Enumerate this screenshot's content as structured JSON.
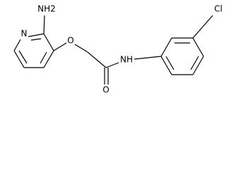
{
  "atoms": [
    {
      "label": "NH2"
    },
    {
      "label": "N"
    },
    {
      "label": "O"
    },
    {
      "label": "NH"
    },
    {
      "label": "O"
    },
    {
      "label": "Cl"
    }
  ]
}
